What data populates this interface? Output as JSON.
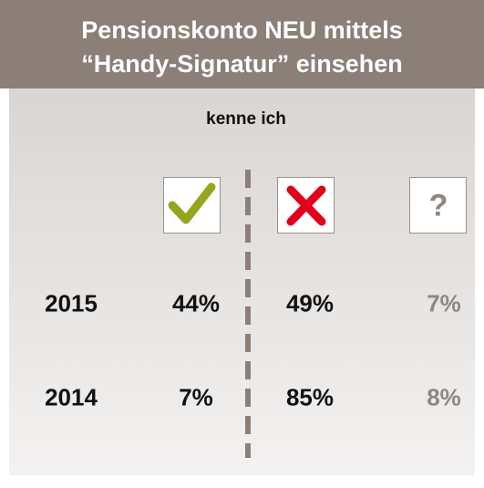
{
  "header": {
    "title_lines": [
      "Pensionskonto NEU mittels",
      "“Handy-Signatur” einsehen"
    ]
  },
  "subtitle": "kenne ich",
  "columns": {
    "unknown_label": "?"
  },
  "rows": [
    {
      "year": "2015",
      "values": [
        "44%",
        "49%",
        "7%"
      ]
    },
    {
      "year": "2014",
      "values": [
        "7%",
        "85%",
        "8%"
      ]
    }
  ]
}
